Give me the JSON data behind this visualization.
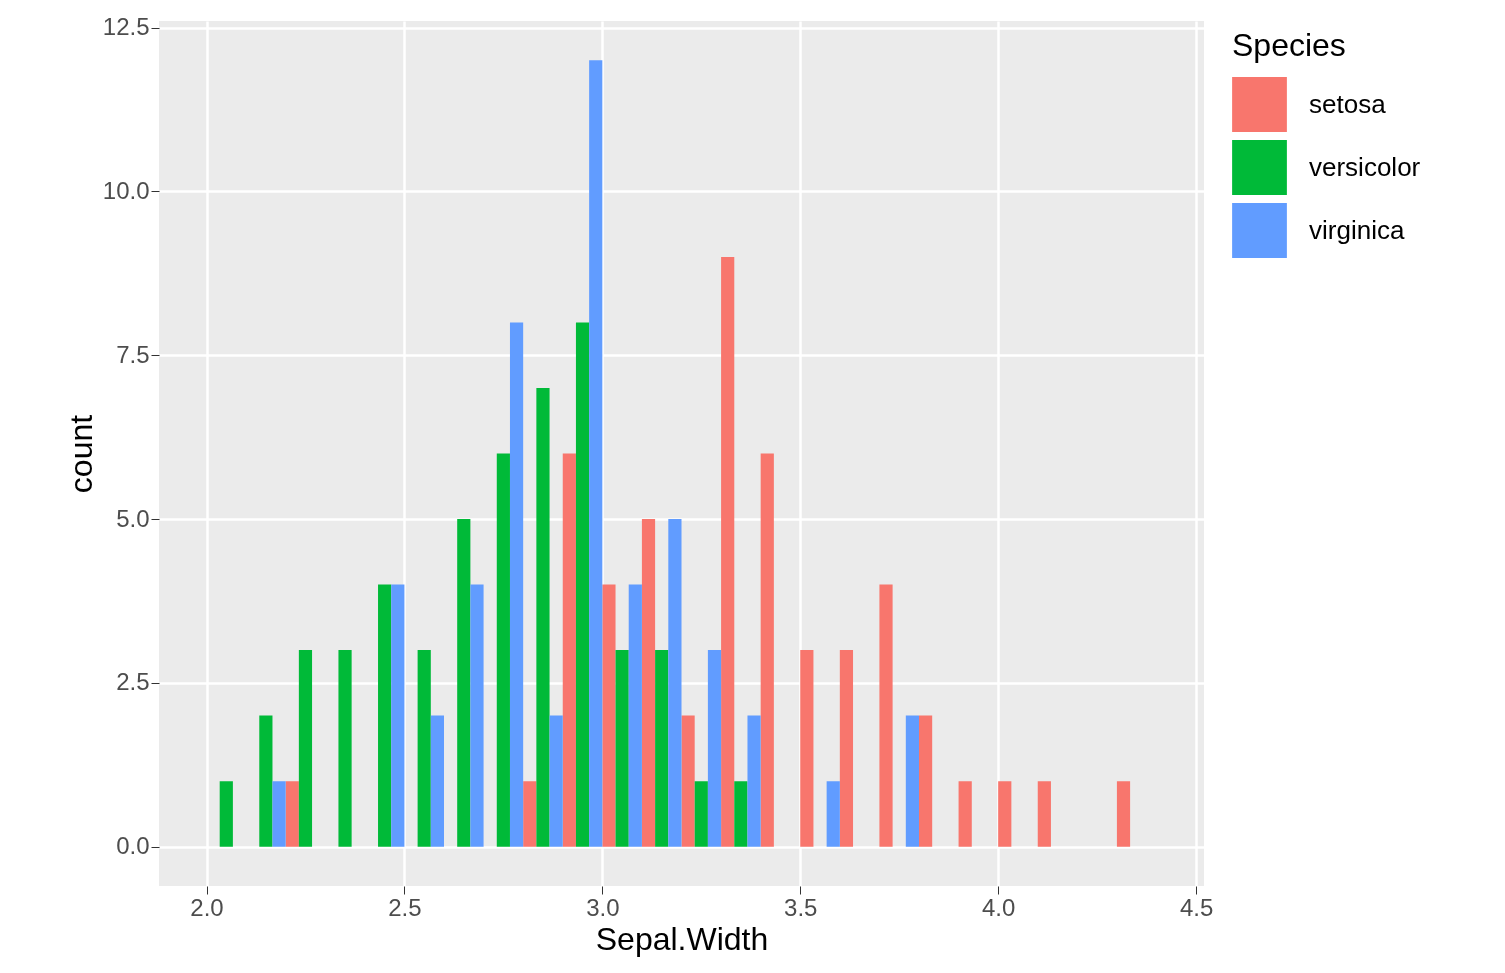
{
  "chart_data": {
    "type": "histogram",
    "xlabel": "Sepal.Width",
    "ylabel": "count",
    "legend_title": "Species",
    "bins": [
      2.0,
      2.1,
      2.2,
      2.3,
      2.4,
      2.5,
      2.6,
      2.7,
      2.8,
      2.9,
      3.0,
      3.1,
      3.2,
      3.3,
      3.4,
      3.5,
      3.6,
      3.7,
      3.8,
      3.9,
      4.0,
      4.1,
      4.2,
      4.3,
      4.4
    ],
    "series": [
      {
        "name": "setosa",
        "color": "#f8766d",
        "values": [
          0,
          0,
          1,
          0,
          0,
          0,
          0,
          0,
          1,
          6,
          4,
          5,
          2,
          9,
          6,
          3,
          3,
          4,
          2,
          1,
          1,
          1,
          0,
          1
        ]
      },
      {
        "name": "versicolor",
        "color": "#00ba38",
        "values": [
          1,
          2,
          3,
          3,
          4,
          3,
          5,
          6,
          7,
          8,
          3,
          3,
          1,
          1,
          0,
          0,
          0,
          0,
          0,
          0,
          0,
          0,
          0,
          0
        ]
      },
      {
        "name": "virginica",
        "color": "#619cff",
        "values": [
          0,
          1,
          0,
          0,
          4,
          2,
          4,
          8,
          2,
          12,
          4,
          5,
          3,
          2,
          0,
          1,
          0,
          2,
          0,
          0,
          0,
          0,
          0,
          0
        ]
      }
    ],
    "xlim": [
      1.88,
      4.52
    ],
    "ylim": [
      -0.6,
      12.6
    ],
    "xticks": [
      {
        "value": 2.0,
        "label": "2.0"
      },
      {
        "value": 2.5,
        "label": "2.5"
      },
      {
        "value": 3.0,
        "label": "3.0"
      },
      {
        "value": 3.5,
        "label": "3.5"
      },
      {
        "value": 4.0,
        "label": "4.0"
      },
      {
        "value": 4.5,
        "label": "4.5"
      }
    ],
    "yticks": [
      {
        "value": 0,
        "label": "0.0"
      },
      {
        "value": 2.5,
        "label": "2.5"
      },
      {
        "value": 5,
        "label": "5.0"
      },
      {
        "value": 7.5,
        "label": "7.5"
      },
      {
        "value": 10,
        "label": "10.0"
      },
      {
        "value": 12.5,
        "label": "12.5"
      }
    ],
    "grid": true,
    "legend": "right"
  }
}
